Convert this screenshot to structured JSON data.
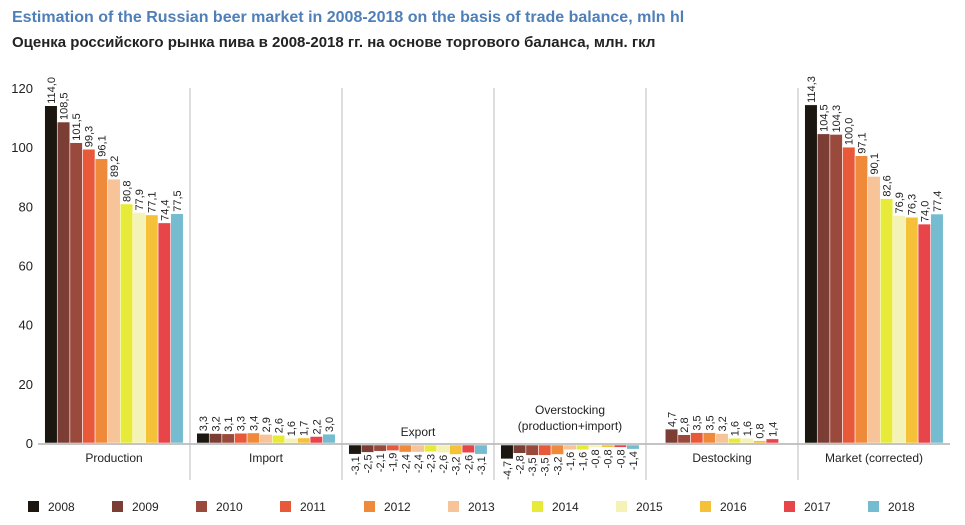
{
  "title_en": "Estimation of the Russian beer market in 2008-2018 on the basis of trade balance, mln hl",
  "title_ru": "Оценка российского рынка пива в 2008-2018 гг. на основе торгового баланса, млн. гкл",
  "chart_data": {
    "type": "bar",
    "title": "Estimation of the Russian beer market in 2008-2018 on the basis of trade balance, mln hl",
    "subtitle": "Оценка российского рынка пива в 2008-2018 гг. на основе торгового баланса, млн. гкл",
    "xlabel": "",
    "ylabel": "",
    "ylim": [
      0,
      120
    ],
    "yticks": [
      "0",
      "20",
      "40",
      "60",
      "80",
      "100",
      "120"
    ],
    "legend_position": "bottom",
    "series_names": [
      "2008",
      "2009",
      "2010",
      "2011",
      "2012",
      "2013",
      "2014",
      "2015",
      "2016",
      "2017",
      "2018"
    ],
    "colors": [
      "#1c1610",
      "#7b3d34",
      "#9a4a3c",
      "#e8593a",
      "#f08a3b",
      "#f7c49a",
      "#e8ea3a",
      "#f5f2b8",
      "#f5c138",
      "#e8454a",
      "#76bcd0"
    ],
    "groups": [
      {
        "name": "Production",
        "values": [
          114.0,
          108.5,
          101.5,
          99.3,
          96.1,
          89.2,
          80.8,
          77.9,
          77.1,
          74.4,
          77.5
        ],
        "labels": [
          "114,0",
          "108,5",
          "101,5",
          "99,3",
          "96,1",
          "89,2",
          "80,8",
          "77,9",
          "77,1",
          "74,4",
          "77,5"
        ]
      },
      {
        "name": "Import",
        "values": [
          3.3,
          3.2,
          3.1,
          3.3,
          3.4,
          2.9,
          2.6,
          1.6,
          1.7,
          2.2,
          3.0
        ],
        "labels": [
          "3,3",
          "3,2",
          "3,1",
          "3,3",
          "3,4",
          "2,9",
          "2,6",
          "1,6",
          "1,7",
          "2,2",
          "3,0"
        ]
      },
      {
        "name": "Export",
        "values": [
          -3.1,
          -2.5,
          -2.1,
          -1.9,
          -2.4,
          -2.4,
          -2.3,
          -2.6,
          -3.2,
          -2.6,
          -3.1
        ],
        "labels": [
          "-3,1",
          "-2,5",
          "-2,1",
          "-1,9",
          "-2,4",
          "-2,4",
          "-2,3",
          "-2,6",
          "-3,2",
          "-2,6",
          "-3,1"
        ]
      },
      {
        "name": "Overstocking\n(production+import)",
        "values": [
          -4.7,
          -2.8,
          -3.5,
          -3.5,
          -3.2,
          -1.6,
          -1.6,
          -0.8,
          -0.8,
          -0.8,
          -1.4
        ],
        "labels": [
          "-4,7",
          "-2,8",
          "-3,5",
          "-3,5",
          "-3,2",
          "-1,6",
          "-1,6",
          "-0,8",
          "-0,8",
          "-0,8",
          "-1,4"
        ]
      },
      {
        "name": "Destocking",
        "values": [
          0,
          4.7,
          2.8,
          3.5,
          3.5,
          3.2,
          1.6,
          1.6,
          0.8,
          1.4,
          0
        ],
        "labels": [
          "",
          "4,7",
          "2,8",
          "3,5",
          "3,5",
          "3,2",
          "1,6",
          "1,6",
          "0,8",
          "1,4",
          ""
        ]
      },
      {
        "name": "Market (corrected)",
        "values": [
          114.3,
          104.5,
          104.3,
          100.0,
          97.1,
          90.1,
          82.6,
          76.9,
          76.3,
          74.0,
          77.4
        ],
        "labels": [
          "114,3",
          "104,5",
          "104,3",
          "100,0",
          "97,1",
          "90,1",
          "82,6",
          "76,9",
          "76,3",
          "74,0",
          "77,4"
        ]
      }
    ]
  }
}
